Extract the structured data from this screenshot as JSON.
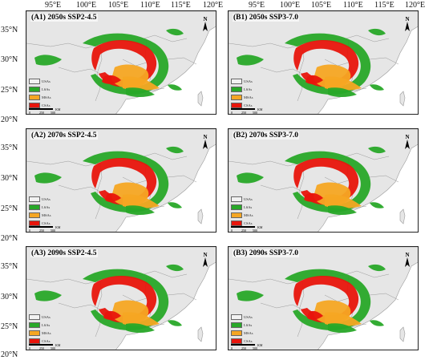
{
  "axes": {
    "top_longitudes": [
      "95°E",
      "100°E",
      "105°E",
      "110°E",
      "115°E",
      "120°E"
    ],
    "left_latitudes": [
      "35°N",
      "30°N",
      "25°N",
      "20°N"
    ]
  },
  "legend": {
    "items": [
      {
        "label": "USAs",
        "color": "#f2f2f2"
      },
      {
        "label": "LSAs",
        "color": "#28a828"
      },
      {
        "label": "MSAs",
        "color": "#f5a623"
      },
      {
        "label": "CSAs",
        "color": "#e8150c"
      }
    ]
  },
  "scale": {
    "ticks": [
      "0",
      "250",
      "500"
    ],
    "unit": "KM"
  },
  "north_label": "N",
  "colors": {
    "land": "#e6e6e6",
    "border": "#9a9a9a",
    "sea": "#ffffff"
  },
  "panels": [
    {
      "id": "A1",
      "title": "(A1) 2050s SSP2-4.5"
    },
    {
      "id": "B1",
      "title": "(B1) 2050s SSP3-7.0"
    },
    {
      "id": "A2",
      "title": "(A2) 2070s SSP2-4.5"
    },
    {
      "id": "B2",
      "title": "(B2) 2070s SSP3-7.0"
    },
    {
      "id": "A3",
      "title": "(A3) 2090s SSP2-4.5"
    },
    {
      "id": "B3",
      "title": "(B3) 2090s SSP3-7.0"
    }
  ]
}
